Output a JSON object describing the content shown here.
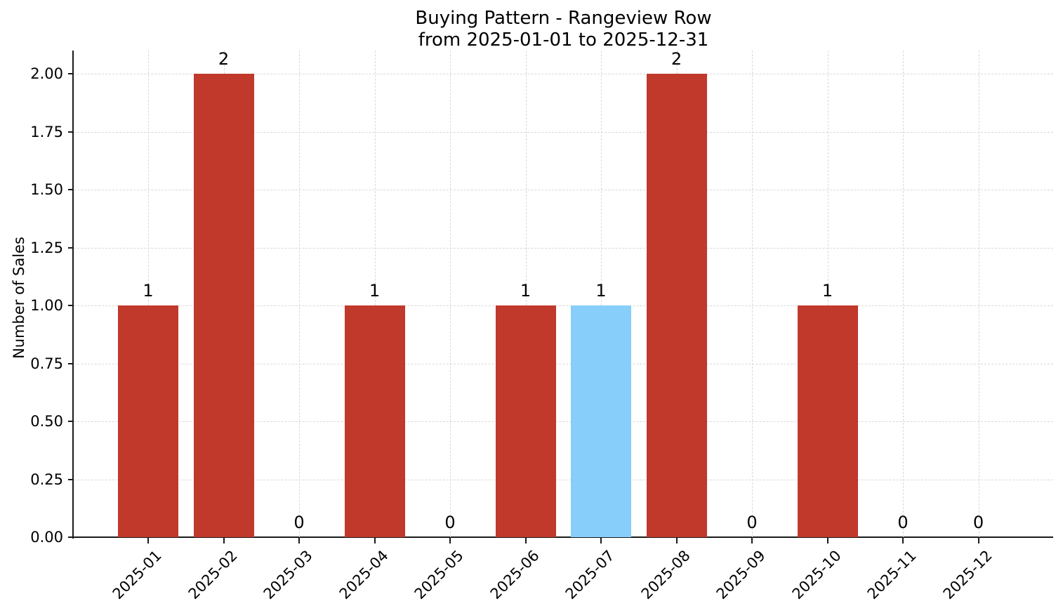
{
  "chart_data": {
    "type": "bar",
    "title": "Buying Pattern - Rangeview Row",
    "subtitle": "from 2025-01-01 to 2025-12-31",
    "ylabel": "Number of Sales",
    "xlabel": "",
    "categories": [
      "2025-01",
      "2025-02",
      "2025-03",
      "2025-04",
      "2025-05",
      "2025-06",
      "2025-07",
      "2025-08",
      "2025-09",
      "2025-10",
      "2025-11",
      "2025-12"
    ],
    "values": [
      1,
      2,
      0,
      1,
      0,
      1,
      1,
      2,
      0,
      1,
      0,
      0
    ],
    "value_labels": [
      "1",
      "2",
      "0",
      "1",
      "0",
      "1",
      "1",
      "2",
      "0",
      "1",
      "0",
      "0"
    ],
    "bar_colors": [
      "#c0392b",
      "#c0392b",
      "#c0392b",
      "#c0392b",
      "#c0392b",
      "#c0392b",
      "#87cefa",
      "#c0392b",
      "#c0392b",
      "#c0392b",
      "#c0392b",
      "#c0392b"
    ],
    "default_bar_color": "#c0392b",
    "highlight": {
      "category": "2025-07",
      "color": "#87cefa"
    },
    "ytick_labels": [
      "0.00",
      "0.25",
      "0.50",
      "0.75",
      "1.00",
      "1.25",
      "1.50",
      "1.75",
      "2.00"
    ],
    "ytick_values": [
      0,
      0.25,
      0.5,
      0.75,
      1.0,
      1.25,
      1.5,
      1.75,
      2.0
    ],
    "ylim": [
      0,
      2.1
    ],
    "grid": true,
    "grid_style": "dashed",
    "grid_color": "#d9d9d9",
    "axis_color": "#1a1a1a",
    "legend": "none",
    "background": "#ffffff"
  }
}
